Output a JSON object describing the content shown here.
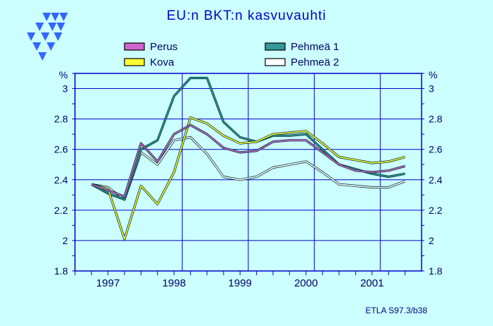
{
  "chart_data": {
    "type": "line",
    "title": "EU:n BKT:n kasvuvauhti",
    "ylabel_left": "%",
    "ylabel_right": "%",
    "xlabel": "",
    "ylim": [
      1.8,
      3.1
    ],
    "yticks": [
      "1.8",
      "2",
      "2.2",
      "2.4",
      "2.6",
      "2.8",
      "3"
    ],
    "xlim": [
      1996.5,
      2001.75
    ],
    "categories": [
      "1997",
      "1998",
      "1999",
      "2000",
      "2001"
    ],
    "grid": true,
    "legend_position": "top",
    "x": [
      1996.75,
      1997.0,
      1997.25,
      1997.5,
      1997.75,
      1998.0,
      1998.25,
      1998.5,
      1998.75,
      1999.0,
      1999.25,
      1999.5,
      1999.75,
      2000.0,
      2000.25,
      2000.5,
      2000.75,
      2001.0,
      2001.25,
      2001.5
    ],
    "series": [
      {
        "name": "Perus",
        "color": "#cc66cc",
        "values": [
          2.37,
          2.33,
          2.29,
          2.64,
          2.52,
          2.7,
          2.76,
          2.7,
          2.61,
          2.58,
          2.59,
          2.65,
          2.66,
          2.66,
          2.58,
          2.5,
          2.46,
          2.45,
          2.46,
          2.49
        ]
      },
      {
        "name": "Kova",
        "color": "#ffff33",
        "values": [
          2.37,
          2.34,
          2.01,
          2.36,
          2.24,
          2.45,
          2.81,
          2.77,
          2.69,
          2.64,
          2.65,
          2.7,
          2.71,
          2.72,
          2.64,
          2.55,
          2.53,
          2.51,
          2.52,
          2.55
        ]
      },
      {
        "name": "Pehmeä 1",
        "color": "#339999",
        "values": [
          2.37,
          2.31,
          2.27,
          2.6,
          2.66,
          2.95,
          3.07,
          3.07,
          2.78,
          2.68,
          2.65,
          2.69,
          2.69,
          2.7,
          2.6,
          2.5,
          2.47,
          2.44,
          2.42,
          2.44
        ]
      },
      {
        "name": "Pehmeä 2",
        "color": "#ffffff",
        "values": [
          2.37,
          2.35,
          2.27,
          2.58,
          2.5,
          2.66,
          2.68,
          2.57,
          2.42,
          2.4,
          2.42,
          2.48,
          2.5,
          2.52,
          2.45,
          2.37,
          2.36,
          2.35,
          2.35,
          2.39
        ]
      }
    ]
  },
  "footer": "ETLA S97.3/b38"
}
